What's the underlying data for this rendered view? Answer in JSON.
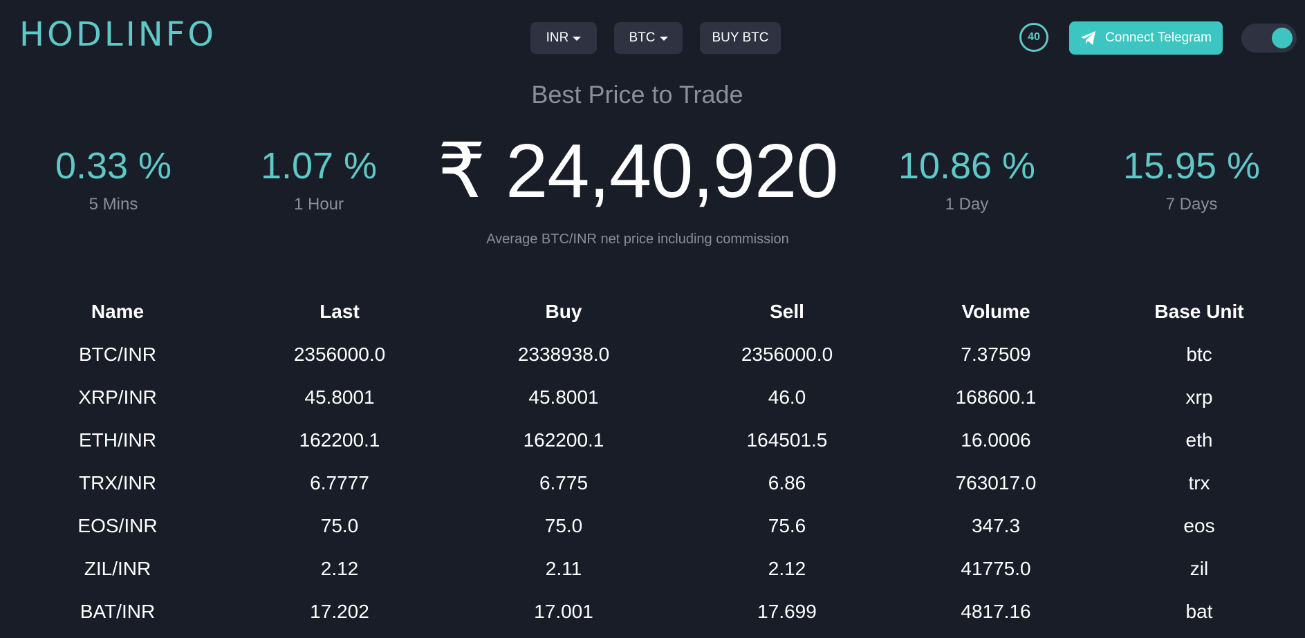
{
  "header": {
    "logo": "HODLINFO",
    "currency_select": "INR",
    "coin_select": "BTC",
    "buy_label": "BUY BTC",
    "timer": "40",
    "telegram_label": "Connect Telegram",
    "theme_toggle_on": true
  },
  "hero": {
    "title": "Best Price to Trade",
    "price": "₹ 24,40,920",
    "subtitle": "Average BTC/INR net price including commission",
    "stats": [
      {
        "value": "0.33 %",
        "label": "5 Mins"
      },
      {
        "value": "1.07 %",
        "label": "1 Hour"
      },
      {
        "value": "10.86 %",
        "label": "1 Day"
      },
      {
        "value": "15.95 %",
        "label": "7 Days"
      }
    ]
  },
  "table": {
    "headers": [
      "Name",
      "Last",
      "Buy",
      "Sell",
      "Volume",
      "Base Unit"
    ],
    "rows": [
      [
        "BTC/INR",
        "2356000.0",
        "2338938.0",
        "2356000.0",
        "7.37509",
        "btc"
      ],
      [
        "XRP/INR",
        "45.8001",
        "45.8001",
        "46.0",
        "168600.1",
        "xrp"
      ],
      [
        "ETH/INR",
        "162200.1",
        "162200.1",
        "164501.5",
        "16.0006",
        "eth"
      ],
      [
        "TRX/INR",
        "6.7777",
        "6.775",
        "6.86",
        "763017.0",
        "trx"
      ],
      [
        "EOS/INR",
        "75.0",
        "75.0",
        "75.6",
        "347.3",
        "eos"
      ],
      [
        "ZIL/INR",
        "2.12",
        "2.11",
        "2.12",
        "41775.0",
        "zil"
      ],
      [
        "BAT/INR",
        "17.202",
        "17.001",
        "17.699",
        "4817.16",
        "bat"
      ]
    ]
  },
  "colors": {
    "background": "#191d28",
    "accent": "#5fc9c8",
    "button_bg": "#2e3241",
    "muted_text": "#8a8f9c"
  },
  "icons": {
    "telegram": "telegram-icon",
    "caret": "chevron-down-icon"
  }
}
